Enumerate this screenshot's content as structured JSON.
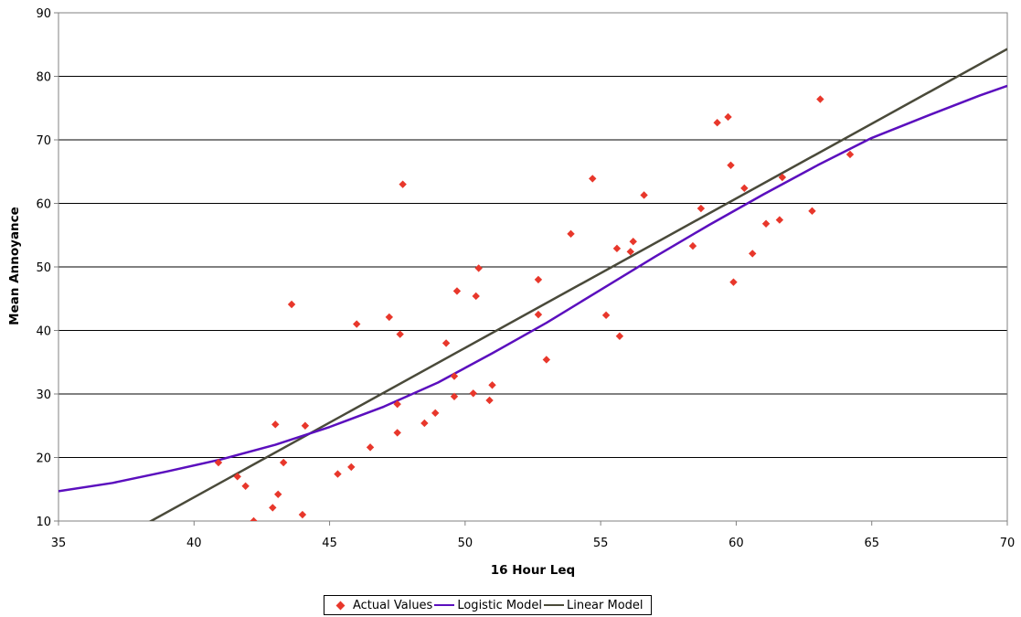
{
  "chart_data": {
    "type": "scatter",
    "xlabel": "16 Hour Leq",
    "ylabel": "Mean Annoyance",
    "xlim": [
      35,
      70
    ],
    "ylim": [
      10,
      90
    ],
    "xticks": [
      "35",
      "40",
      "45",
      "50",
      "55",
      "60",
      "65",
      "70"
    ],
    "yticks": [
      "10",
      "20",
      "30",
      "40",
      "50",
      "60",
      "70",
      "80",
      "90"
    ],
    "grid": "horizontal",
    "legend_position": "bottom-center",
    "series": [
      {
        "name": "Actual Values",
        "kind": "scatter",
        "color": "#e8372b",
        "x": [
          40.9,
          41.6,
          41.9,
          42.2,
          42.9,
          43.0,
          43.1,
          43.3,
          43.6,
          44.0,
          44.1,
          45.3,
          45.8,
          46.0,
          46.5,
          47.2,
          47.5,
          47.5,
          47.6,
          47.7,
          48.5,
          48.9,
          49.3,
          49.6,
          49.6,
          49.7,
          50.3,
          50.4,
          50.5,
          50.9,
          51.0,
          52.7,
          52.7,
          53.0,
          53.9,
          54.7,
          55.2,
          55.6,
          55.7,
          56.1,
          56.2,
          56.6,
          58.4,
          58.7,
          59.3,
          59.7,
          59.8,
          59.9,
          60.3,
          60.6,
          61.1,
          61.6,
          61.7,
          62.8,
          63.1,
          64.2
        ],
        "y": [
          19.2,
          17.0,
          15.5,
          10.0,
          12.1,
          25.2,
          14.2,
          19.2,
          44.1,
          11.0,
          25.0,
          17.4,
          18.5,
          41.0,
          21.6,
          42.1,
          23.9,
          28.4,
          39.4,
          63.0,
          25.4,
          27.0,
          38.0,
          29.6,
          32.8,
          46.2,
          30.1,
          45.4,
          49.8,
          29.0,
          31.4,
          48.0,
          42.5,
          35.4,
          55.2,
          63.9,
          42.4,
          52.9,
          39.1,
          52.4,
          54.0,
          61.3,
          53.3,
          59.2,
          72.7,
          73.6,
          66.0,
          47.6,
          62.4,
          52.1,
          56.8,
          57.4,
          64.1,
          58.8,
          76.4,
          67.7
        ]
      },
      {
        "name": "Logistic Model",
        "kind": "line",
        "color": "#5b0fbe",
        "x": [
          35,
          37,
          39,
          41,
          43,
          45,
          47,
          49,
          51,
          53,
          55,
          57,
          59,
          61,
          63,
          65,
          67,
          69,
          70
        ],
        "y": [
          14.7,
          16.0,
          17.8,
          19.7,
          22.0,
          24.8,
          28.0,
          31.8,
          36.4,
          41.2,
          46.4,
          51.6,
          56.6,
          61.4,
          66.0,
          70.3,
          73.7,
          77.0,
          78.5
        ]
      },
      {
        "name": "Linear Model",
        "kind": "line",
        "color": "#4a4a3a",
        "x": [
          38.2,
          70
        ],
        "y": [
          9.5,
          84.3
        ]
      }
    ]
  }
}
